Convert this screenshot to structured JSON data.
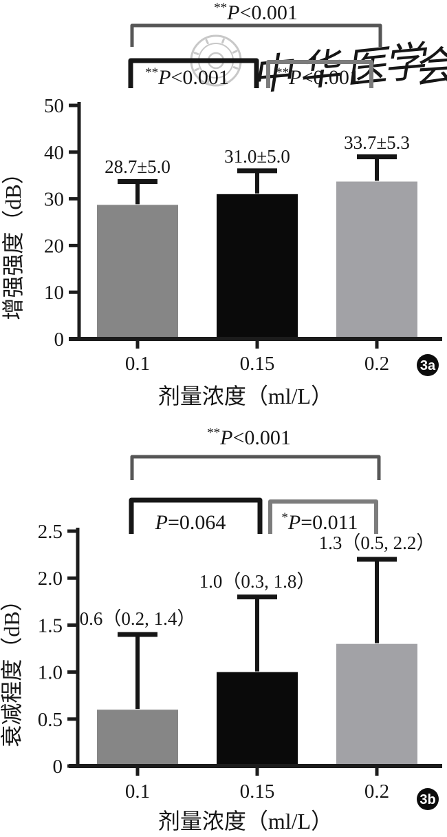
{
  "figure": {
    "panels": [
      "3a",
      "3b"
    ]
  },
  "watermark": {
    "text": "中华医学会",
    "chars": [
      "中",
      "华",
      "医",
      "学",
      "会"
    ],
    "color": "#c8c8c8"
  },
  "chart_data": [
    {
      "type": "bar",
      "panel": "3a",
      "badge": "3a",
      "categories": [
        "0.1",
        "0.15",
        "0.2"
      ],
      "values": [
        28.7,
        31.0,
        33.7
      ],
      "sd": [
        5.0,
        5.0,
        5.3
      ],
      "error_tops": [
        33.7,
        36.0,
        39.0
      ],
      "value_labels": [
        "28.7±5.0",
        "31.0±5.0",
        "33.7±5.3"
      ],
      "xlabel": "剂量浓度（ml/L）",
      "ylabel": "增强强度（dB）",
      "ylim": [
        0,
        50
      ],
      "ytick_labels": [
        "0",
        "10",
        "20",
        "30",
        "40",
        "50"
      ],
      "bar_colors": [
        "#868686",
        "#0a0a0a",
        "#a2a2a6"
      ],
      "errorbar_color": "#151515",
      "axis_color": "#1c1c1c",
      "bracket_colors": {
        "outer": "#565656",
        "inner_left": "#161616",
        "inner_right": "#7c7c7c"
      },
      "significance": [
        {
          "compare": "0.1 vs 0.2",
          "stars": "**",
          "p": "P",
          "relation": "<0.001",
          "label": "**P<0.001"
        },
        {
          "compare": "0.1 vs 0.15",
          "stars": "**",
          "p": "P",
          "relation": "<0.001",
          "label": "**P<0.001"
        },
        {
          "compare": "0.15 vs 0.2",
          "stars": "**",
          "p": "P",
          "relation": "<0.001",
          "label": "**P<0.001"
        }
      ]
    },
    {
      "type": "bar",
      "panel": "3b",
      "badge": "3b",
      "categories": [
        "0.1",
        "0.15",
        "0.2"
      ],
      "values": [
        0.6,
        1.0,
        1.3
      ],
      "error_tops": [
        1.4,
        1.8,
        2.2
      ],
      "value_labels": [
        "0.6（0.2, 1.4）",
        "1.0（0.3, 1.8）",
        "1.3（0.5, 2.2）"
      ],
      "xlabel": "剂量浓度（ml/L）",
      "ylabel": "衰减程度（dB）",
      "ylim": [
        0,
        2.5
      ],
      "ytick_labels": [
        "0",
        "0.5",
        "1.0",
        "1.5",
        "2.0",
        "2.5"
      ],
      "bar_colors": [
        "#868686",
        "#0a0a0a",
        "#a2a2a6"
      ],
      "errorbar_color": "#151515",
      "axis_color": "#1c1c1c",
      "bracket_colors": {
        "outer": "#565656",
        "inner_left": "#161616",
        "inner_right": "#7c7c7c"
      },
      "significance": [
        {
          "compare": "0.1 vs 0.2",
          "stars": "**",
          "p": "P",
          "relation": "<0.001",
          "label": "**P<0.001"
        },
        {
          "compare": "0.1 vs 0.15",
          "stars": "",
          "p": "P",
          "relation": "=0.064",
          "label": "P=0.064"
        },
        {
          "compare": "0.15 vs 0.2",
          "stars": "*",
          "p": "P",
          "relation": "=0.011",
          "label": "*P=0.011"
        }
      ]
    }
  ]
}
